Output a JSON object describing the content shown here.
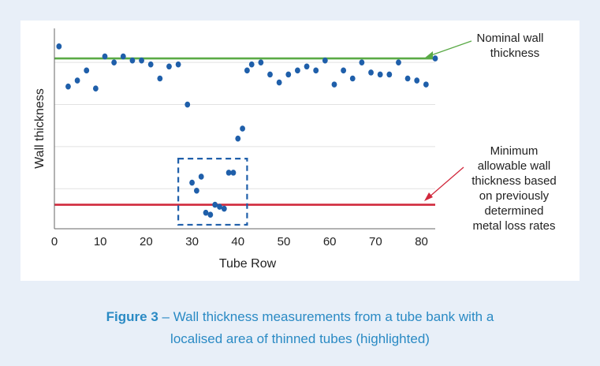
{
  "chart_data": {
    "type": "scatter",
    "xlabel": "Tube Row",
    "ylabel": "Wall thickness",
    "xlim": [
      0,
      83
    ],
    "xticks": [
      0,
      10,
      20,
      30,
      40,
      50,
      60,
      70,
      80
    ],
    "ylim": [
      0,
      100
    ],
    "y_tick_labels_shown": false,
    "grid": "horizontal",
    "lines": [
      {
        "label": "Nominal wall thickness",
        "value": 85,
        "color": "#5aaa46"
      },
      {
        "label": "Minimum allowable wall thickness based on previously determined metal loss rates",
        "value": 12,
        "color": "#d1283c"
      }
    ],
    "highlight_box": {
      "x": [
        27,
        42
      ],
      "y": [
        2,
        35
      ]
    },
    "point_color": "#1f5faa",
    "points": [
      {
        "x": 1,
        "y": 91
      },
      {
        "x": 3,
        "y": 71
      },
      {
        "x": 5,
        "y": 74
      },
      {
        "x": 7,
        "y": 79
      },
      {
        "x": 9,
        "y": 70
      },
      {
        "x": 11,
        "y": 86
      },
      {
        "x": 13,
        "y": 83
      },
      {
        "x": 15,
        "y": 86
      },
      {
        "x": 17,
        "y": 84
      },
      {
        "x": 19,
        "y": 84
      },
      {
        "x": 21,
        "y": 82
      },
      {
        "x": 23,
        "y": 75
      },
      {
        "x": 25,
        "y": 81
      },
      {
        "x": 27,
        "y": 82
      },
      {
        "x": 29,
        "y": 62
      },
      {
        "x": 30,
        "y": 23
      },
      {
        "x": 31,
        "y": 19
      },
      {
        "x": 32,
        "y": 26
      },
      {
        "x": 33,
        "y": 8
      },
      {
        "x": 34,
        "y": 7
      },
      {
        "x": 35,
        "y": 12
      },
      {
        "x": 36,
        "y": 11
      },
      {
        "x": 37,
        "y": 10
      },
      {
        "x": 38,
        "y": 28
      },
      {
        "x": 39,
        "y": 28
      },
      {
        "x": 40,
        "y": 45
      },
      {
        "x": 41,
        "y": 50
      },
      {
        "x": 42,
        "y": 79
      },
      {
        "x": 43,
        "y": 82
      },
      {
        "x": 45,
        "y": 83
      },
      {
        "x": 47,
        "y": 77
      },
      {
        "x": 49,
        "y": 73
      },
      {
        "x": 51,
        "y": 77
      },
      {
        "x": 53,
        "y": 79
      },
      {
        "x": 55,
        "y": 81
      },
      {
        "x": 57,
        "y": 79
      },
      {
        "x": 59,
        "y": 84
      },
      {
        "x": 61,
        "y": 72
      },
      {
        "x": 63,
        "y": 79
      },
      {
        "x": 65,
        "y": 75
      },
      {
        "x": 67,
        "y": 83
      },
      {
        "x": 69,
        "y": 78
      },
      {
        "x": 71,
        "y": 77
      },
      {
        "x": 73,
        "y": 77
      },
      {
        "x": 75,
        "y": 83
      },
      {
        "x": 77,
        "y": 75
      },
      {
        "x": 79,
        "y": 74
      },
      {
        "x": 81,
        "y": 72
      },
      {
        "x": 83,
        "y": 85
      }
    ]
  },
  "annotations": {
    "nominal": [
      "Nominal wall",
      "thickness"
    ],
    "minimum": [
      "Minimum",
      "allowable wall",
      "thickness based",
      "on previously",
      "determined",
      "metal loss rates"
    ]
  },
  "caption": {
    "figure_label": "Figure 3",
    "dash": " – ",
    "text_line1": "Wall thickness measurements from a tube bank with a",
    "text_line2": "localised area of thinned tubes (highlighted)"
  }
}
